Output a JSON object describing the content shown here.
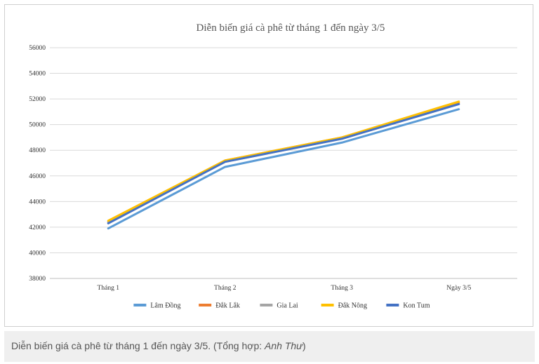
{
  "caption": {
    "text": "Diễn biến giá cà phê từ tháng 1 đến ngày 3/5. (Tổng hợp: ",
    "author": "Anh Thư",
    "suffix": ")"
  },
  "chart_data": {
    "type": "line",
    "title": "Diễn biến giá cà phê từ tháng 1 đến ngày 3/5",
    "xlabel": "",
    "ylabel": "",
    "categories": [
      "Tháng 1",
      "Tháng 2",
      "Tháng 3",
      "Ngày 3/5"
    ],
    "ylim": [
      38000,
      56000
    ],
    "yticks": [
      38000,
      40000,
      42000,
      44000,
      46000,
      48000,
      50000,
      52000,
      54000,
      56000
    ],
    "grid": true,
    "legend_position": "bottom",
    "series": [
      {
        "name": "Lâm Đồng",
        "color": "#5b9bd5",
        "values": [
          41900,
          46700,
          48600,
          51200
        ]
      },
      {
        "name": "Đắk Lắk",
        "color": "#ed7d31",
        "values": [
          42400,
          47200,
          49000,
          51700
        ]
      },
      {
        "name": "Gia Lai",
        "color": "#a5a5a5",
        "values": [
          42400,
          47100,
          48900,
          51600
        ]
      },
      {
        "name": "Đắk Nông",
        "color": "#ffc000",
        "values": [
          42500,
          47200,
          49000,
          51800
        ]
      },
      {
        "name": "Kon Tum",
        "color": "#4472c4",
        "values": [
          42300,
          47100,
          48900,
          51600
        ]
      }
    ]
  }
}
